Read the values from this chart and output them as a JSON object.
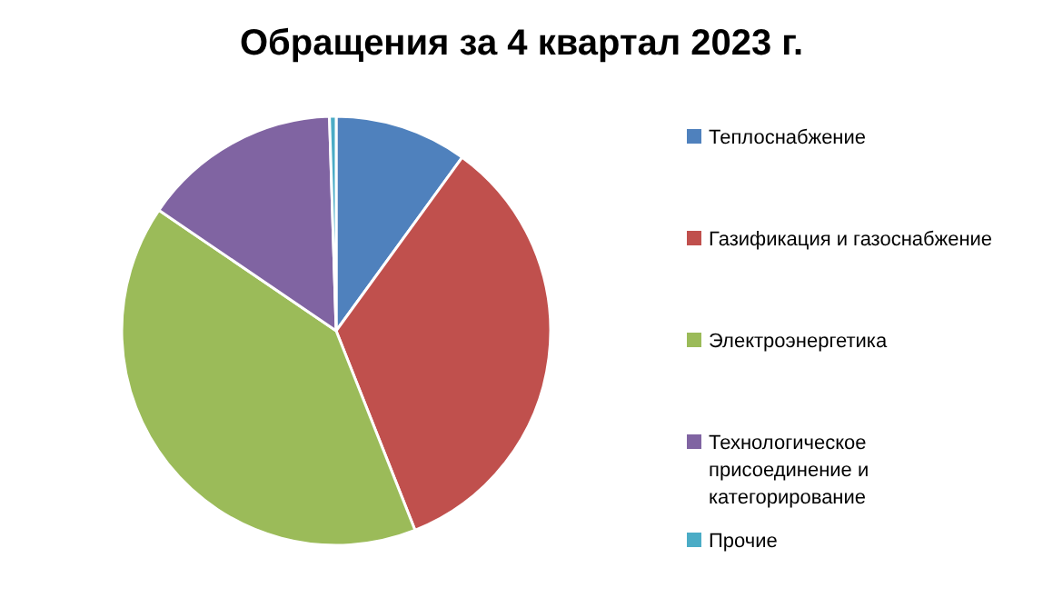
{
  "chart_data": {
    "type": "pie",
    "title": "Обращения за 4 квартал 2023 г.",
    "categories": [
      "Теплоснабжение",
      "Газификация и газоснабжение",
      "Электроэнергетика",
      "Технологическое присоединение и категорирование",
      "Прочие"
    ],
    "values": [
      10,
      34,
      40.5,
      15,
      0.5
    ],
    "colors": [
      "#4f81bd",
      "#c0504d",
      "#9bbb59",
      "#8064a2",
      "#4bacc6"
    ],
    "legend": "right"
  }
}
